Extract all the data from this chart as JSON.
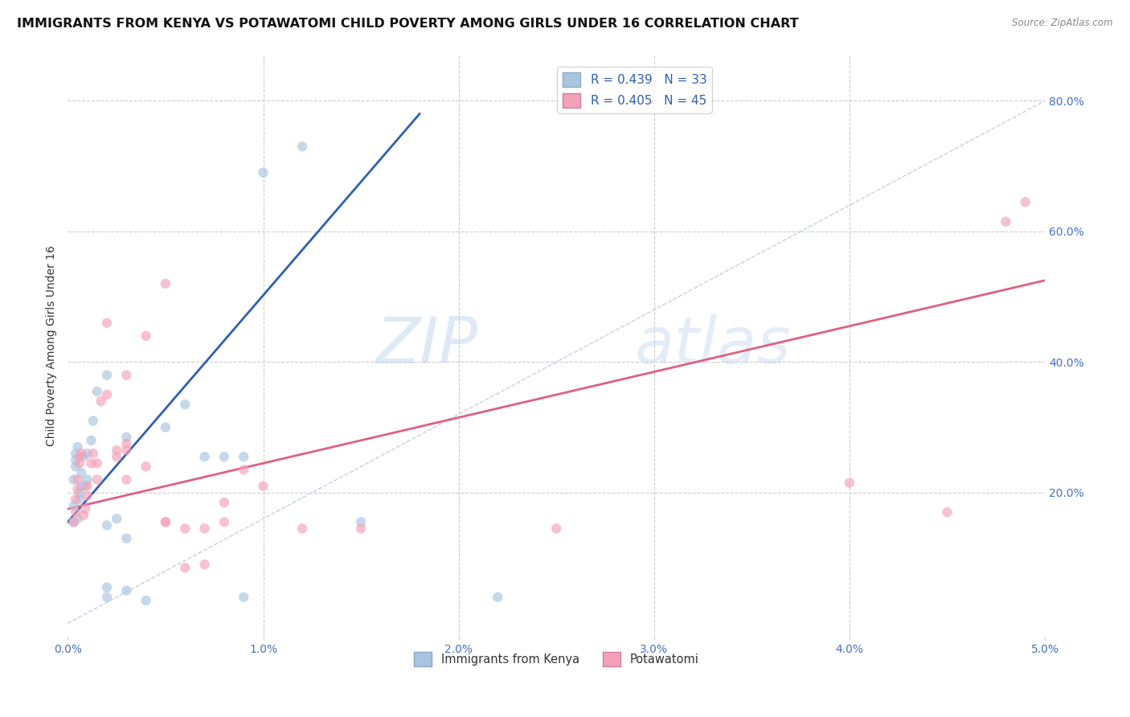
{
  "title": "IMMIGRANTS FROM KENYA VS POTAWATOMI CHILD POVERTY AMONG GIRLS UNDER 16 CORRELATION CHART",
  "source": "Source: ZipAtlas.com",
  "ylabel": "Child Poverty Among Girls Under 16",
  "xlim": [
    0.0,
    0.05
  ],
  "ylim": [
    -0.02,
    0.87
  ],
  "xticks": [
    0.0,
    0.01,
    0.02,
    0.03,
    0.04,
    0.05
  ],
  "xtick_labels": [
    "0.0%",
    "1.0%",
    "2.0%",
    "3.0%",
    "4.0%",
    "5.0%"
  ],
  "yticks_right": [
    0.2,
    0.4,
    0.6,
    0.8
  ],
  "ytick_labels_right": [
    "20.0%",
    "40.0%",
    "60.0%",
    "80.0%"
  ],
  "blue_scatter": [
    [
      0.0003,
      0.155
    ],
    [
      0.0003,
      0.18
    ],
    [
      0.0003,
      0.22
    ],
    [
      0.0004,
      0.24
    ],
    [
      0.0004,
      0.25
    ],
    [
      0.0004,
      0.26
    ],
    [
      0.0005,
      0.27
    ],
    [
      0.0005,
      0.16
    ],
    [
      0.0006,
      0.19
    ],
    [
      0.0006,
      0.2
    ],
    [
      0.0007,
      0.21
    ],
    [
      0.0007,
      0.23
    ],
    [
      0.0008,
      0.255
    ],
    [
      0.0009,
      0.21
    ],
    [
      0.001,
      0.22
    ],
    [
      0.001,
      0.26
    ],
    [
      0.0012,
      0.28
    ],
    [
      0.0013,
      0.31
    ],
    [
      0.0015,
      0.355
    ],
    [
      0.002,
      0.38
    ],
    [
      0.002,
      0.04
    ],
    [
      0.002,
      0.055
    ],
    [
      0.002,
      0.15
    ],
    [
      0.003,
      0.05
    ],
    [
      0.003,
      0.285
    ],
    [
      0.004,
      0.035
    ],
    [
      0.005,
      0.3
    ],
    [
      0.006,
      0.335
    ],
    [
      0.007,
      0.255
    ],
    [
      0.008,
      0.255
    ],
    [
      0.009,
      0.04
    ],
    [
      0.009,
      0.255
    ],
    [
      0.01,
      0.69
    ],
    [
      0.012,
      0.73
    ],
    [
      0.015,
      0.155
    ],
    [
      0.022,
      0.04
    ],
    [
      0.003,
      0.13
    ],
    [
      0.0025,
      0.16
    ]
  ],
  "pink_scatter": [
    [
      0.0003,
      0.155
    ],
    [
      0.0004,
      0.17
    ],
    [
      0.0004,
      0.19
    ],
    [
      0.0005,
      0.205
    ],
    [
      0.0005,
      0.22
    ],
    [
      0.0006,
      0.245
    ],
    [
      0.0006,
      0.255
    ],
    [
      0.0007,
      0.26
    ],
    [
      0.0008,
      0.165
    ],
    [
      0.0009,
      0.175
    ],
    [
      0.001,
      0.195
    ],
    [
      0.001,
      0.21
    ],
    [
      0.0012,
      0.245
    ],
    [
      0.0013,
      0.26
    ],
    [
      0.0015,
      0.22
    ],
    [
      0.0015,
      0.245
    ],
    [
      0.0017,
      0.34
    ],
    [
      0.002,
      0.35
    ],
    [
      0.002,
      0.46
    ],
    [
      0.0025,
      0.255
    ],
    [
      0.0025,
      0.265
    ],
    [
      0.003,
      0.265
    ],
    [
      0.003,
      0.275
    ],
    [
      0.003,
      0.22
    ],
    [
      0.004,
      0.44
    ],
    [
      0.004,
      0.24
    ],
    [
      0.005,
      0.155
    ],
    [
      0.005,
      0.155
    ],
    [
      0.006,
      0.145
    ],
    [
      0.006,
      0.085
    ],
    [
      0.007,
      0.145
    ],
    [
      0.007,
      0.09
    ],
    [
      0.008,
      0.185
    ],
    [
      0.008,
      0.155
    ],
    [
      0.009,
      0.235
    ],
    [
      0.01,
      0.21
    ],
    [
      0.012,
      0.145
    ],
    [
      0.015,
      0.145
    ],
    [
      0.025,
      0.145
    ],
    [
      0.04,
      0.215
    ],
    [
      0.045,
      0.17
    ],
    [
      0.048,
      0.615
    ],
    [
      0.049,
      0.645
    ],
    [
      0.003,
      0.38
    ],
    [
      0.005,
      0.52
    ]
  ],
  "blue_line_x": [
    0.0,
    0.018
  ],
  "blue_line_y": [
    0.155,
    0.78
  ],
  "pink_line_x": [
    0.0,
    0.05
  ],
  "pink_line_y": [
    0.175,
    0.525
  ],
  "diag_line_x": [
    0.0,
    0.05
  ],
  "diag_line_y": [
    0.0,
    0.8
  ],
  "bg_color": "#ffffff",
  "scatter_alpha": 0.65,
  "scatter_size": 80,
  "title_fontsize": 11.5,
  "axis_fontsize": 10,
  "tick_color": "#4472c4",
  "grid_color": "#cccccc"
}
